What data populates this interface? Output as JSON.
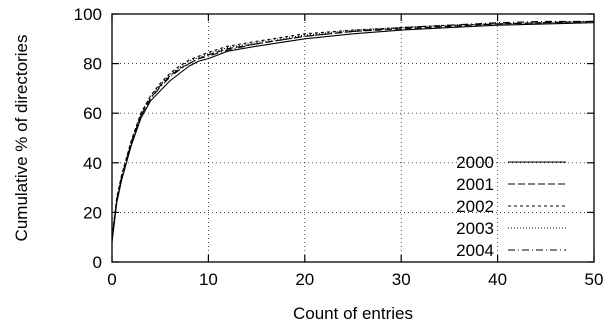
{
  "chart_data": {
    "type": "line",
    "title": "",
    "xlabel": "Count of entries",
    "ylabel": "Cumulative % of directories",
    "xlim": [
      0,
      50
    ],
    "ylim": [
      0,
      100
    ],
    "xticks": [
      0,
      10,
      20,
      30,
      40,
      50
    ],
    "yticks": [
      0,
      20,
      40,
      60,
      80,
      100
    ],
    "grid": true,
    "legend_position": "lower-right",
    "series": [
      {
        "name": "2000",
        "dash": "solid",
        "x": [
          0,
          0.5,
          1,
          2,
          3,
          4,
          5,
          6,
          7,
          8,
          9,
          10,
          12,
          15,
          20,
          25,
          30,
          35,
          40,
          45,
          50
        ],
        "y": [
          8,
          24,
          33,
          47,
          58,
          65,
          69,
          73,
          76,
          79,
          81,
          82,
          85,
          87,
          90,
          92,
          93.5,
          94.5,
          95.5,
          96,
          96.5
        ]
      },
      {
        "name": "2001",
        "dash": "long-dash",
        "x": [
          0,
          0.5,
          1,
          2,
          3,
          4,
          5,
          6,
          7,
          8,
          9,
          10,
          12,
          15,
          20,
          25,
          30,
          35,
          40,
          45,
          50
        ],
        "y": [
          9,
          25,
          34,
          48,
          59,
          66,
          71,
          75,
          78,
          80,
          82,
          83.5,
          86,
          88,
          91,
          93,
          94,
          95,
          96,
          96.5,
          97
        ]
      },
      {
        "name": "2002",
        "dash": "short-dash",
        "x": [
          0,
          0.5,
          1,
          2,
          3,
          4,
          5,
          6,
          7,
          8,
          9,
          10,
          12,
          15,
          20,
          25,
          30,
          35,
          40,
          45,
          50
        ],
        "y": [
          10,
          26,
          35,
          49,
          60,
          67,
          72,
          76,
          79,
          81.5,
          83,
          84.5,
          87,
          89,
          92,
          93.5,
          94.5,
          95.5,
          96,
          96.5,
          97
        ]
      },
      {
        "name": "2003",
        "dash": "dotted",
        "x": [
          0,
          0.5,
          1,
          2,
          3,
          4,
          5,
          6,
          7,
          8,
          9,
          10,
          12,
          15,
          20,
          25,
          30,
          35,
          40,
          45,
          50
        ],
        "y": [
          10,
          26,
          35,
          49,
          60,
          67,
          71.5,
          75.5,
          78.5,
          81,
          82.5,
          84,
          86.5,
          88.5,
          91.5,
          93.5,
          94.5,
          95.5,
          96,
          96.5,
          97
        ]
      },
      {
        "name": "2004",
        "dash": "dash-dot",
        "x": [
          0,
          0.5,
          1,
          2,
          3,
          4,
          5,
          6,
          7,
          8,
          9,
          10,
          12,
          15,
          20,
          25,
          30,
          35,
          40,
          45,
          50
        ],
        "y": [
          9,
          25,
          34,
          48,
          59,
          66,
          70.5,
          74.5,
          77.5,
          80,
          82,
          83,
          85.5,
          88,
          91,
          93,
          94.5,
          95.5,
          96.5,
          97,
          97
        ]
      }
    ]
  }
}
